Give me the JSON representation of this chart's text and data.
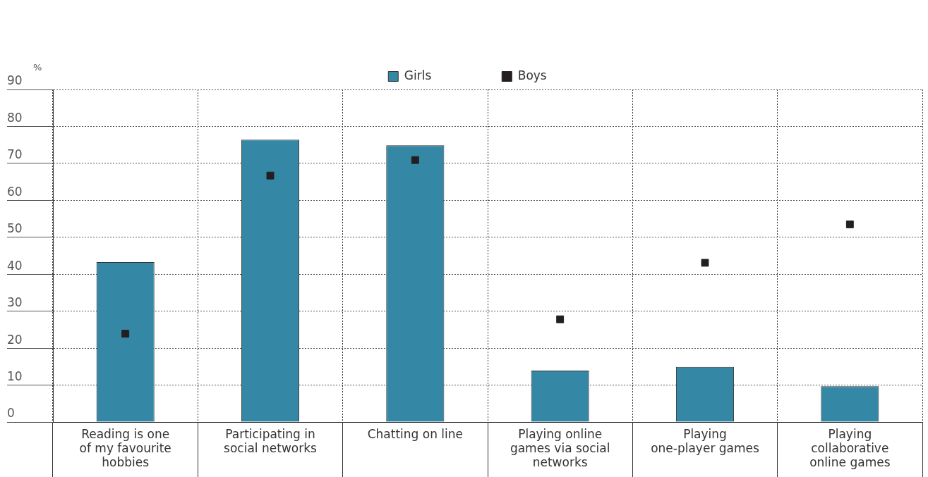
{
  "chart_data": {
    "type": "bar",
    "ylabel": "%",
    "categories": [
      "Reading is one of my favourite hobbies",
      "Participating in social networks",
      "Chatting on line",
      "Playing online games via social networks",
      "Playing one-player games",
      "Playing collaborative online games"
    ],
    "series": [
      {
        "name": "Girls",
        "color": "#3587a6",
        "values": [
          43.3,
          76.4,
          74.9,
          13.9,
          14.9,
          9.7
        ]
      },
      {
        "name": "Boys",
        "type": "scatter",
        "color": "#231f20",
        "marker": "square",
        "values": [
          23.9,
          66.7,
          70.9,
          27.8,
          43.1,
          53.5
        ]
      }
    ],
    "ylim": [
      0,
      90
    ],
    "yticks": [
      0,
      10,
      20,
      30,
      40,
      50,
      60,
      70,
      80,
      90
    ],
    "grid": true,
    "legend": "top"
  }
}
